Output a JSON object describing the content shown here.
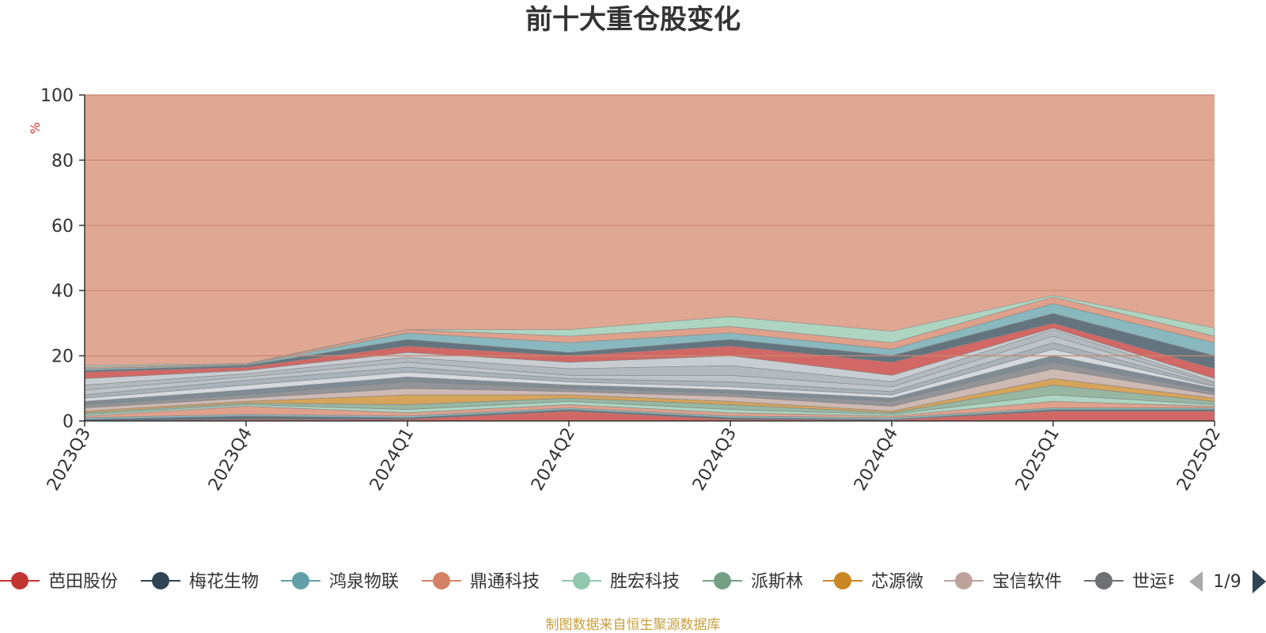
{
  "chart_data": {
    "type": "area",
    "stacked": true,
    "title": "前十大重仓股变化",
    "ylabel": "%",
    "ylim": [
      0,
      100
    ],
    "yticks": [
      0,
      20,
      40,
      60,
      80,
      100
    ],
    "grid": true,
    "categories": [
      "2023Q3",
      "2023Q4",
      "2024Q1",
      "2024Q2",
      "2024Q3",
      "2024Q4",
      "2025Q1",
      "2025Q2"
    ],
    "series": [
      {
        "name": "芭田股份",
        "color": "#c23531",
        "values": [
          0,
          0,
          0,
          3,
          0,
          0,
          0,
          0
        ]
      },
      {
        "name": "梅花生物",
        "color": "#2f4554",
        "values": [
          0,
          0,
          0,
          0,
          0,
          0,
          0,
          2
        ]
      },
      {
        "name": "鸿泉物联",
        "color": "#61a0a8",
        "values": [
          0,
          2,
          0,
          0,
          0,
          0,
          0,
          1
        ]
      },
      {
        "name": "鼎通科技",
        "color": "#d48265",
        "values": [
          0,
          2,
          0,
          0,
          0,
          0,
          3,
          2
        ]
      },
      {
        "name": "胜宏科技",
        "color": "#91c7ae",
        "values": [
          0,
          1,
          0,
          0,
          0,
          0,
          0,
          1
        ]
      },
      {
        "name": "派斯林",
        "color": "#749f83",
        "values": [
          0,
          1,
          0,
          0,
          0,
          0,
          0,
          0
        ]
      },
      {
        "name": "芯源微",
        "color": "#ca8622",
        "values": [
          0,
          0,
          3,
          0,
          0,
          0,
          0,
          0
        ]
      },
      {
        "name": "宝信软件",
        "color": "#bda29a",
        "values": [
          0,
          0,
          0,
          0,
          2,
          0,
          0,
          0
        ]
      },
      {
        "name": "世运电路",
        "color": "#6e7074",
        "values": [
          0,
          0,
          0,
          0,
          0,
          0,
          3,
          0
        ]
      },
      {
        "name": "",
        "color": "#546570",
        "values": [
          0,
          0,
          0,
          0,
          0,
          0,
          0,
          0
        ]
      },
      {
        "name": "",
        "color": "#c4ccd3",
        "values": [
          0,
          0,
          0,
          0,
          0,
          0,
          0,
          0
        ]
      },
      {
        "name": "",
        "color": "#f05b72",
        "values": [
          0,
          0,
          0,
          0,
          0,
          0,
          0,
          0
        ]
      },
      {
        "name": "",
        "color": "#ef5b9c",
        "values": [
          0,
          0,
          0,
          0,
          0,
          0,
          0,
          0
        ]
      },
      {
        "name": "",
        "color": "#f47920",
        "values": [
          0,
          0,
          0,
          0,
          0,
          0,
          0,
          0
        ]
      },
      {
        "name": "",
        "color": "#905a3d",
        "values": [
          0,
          0,
          0,
          0,
          0,
          0,
          0,
          0
        ]
      },
      {
        "name": "",
        "color": "#fab27b",
        "values": [
          0,
          0,
          0,
          0,
          0,
          0,
          0,
          0
        ]
      },
      {
        "name": "",
        "color": "#2a5caa",
        "values": [
          0,
          0,
          0,
          0,
          0,
          0,
          0,
          0
        ]
      },
      {
        "name": "",
        "color": "#444693",
        "values": [
          0,
          0,
          0,
          0,
          0,
          0,
          0,
          0
        ]
      },
      {
        "name": "",
        "color": "#726930",
        "values": [
          0,
          0,
          0,
          0,
          0,
          0,
          0,
          0
        ]
      },
      {
        "name": "",
        "color": "#b2d235",
        "values": [
          0,
          0,
          0,
          0,
          0,
          0,
          0,
          0
        ]
      },
      {
        "name": "",
        "color": "#6d8346",
        "values": [
          0,
          0,
          0,
          0,
          0,
          0,
          0,
          0
        ]
      },
      {
        "name": "",
        "color": "#ac6767",
        "values": [
          0,
          0,
          0,
          0,
          0,
          0,
          0,
          0
        ]
      },
      {
        "name": "",
        "color": "#1d953f",
        "values": [
          0,
          0,
          0,
          0,
          0,
          0,
          0,
          0
        ]
      },
      {
        "name": "",
        "color": "#6950a1",
        "values": [
          0,
          0,
          0,
          0,
          0,
          0,
          0,
          0
        ]
      },
      {
        "name": "",
        "color": "#918597",
        "values": [
          0,
          0,
          0,
          0,
          0,
          0,
          0,
          0
        ]
      }
    ],
    "stack_bands": {
      "colors": [
        "#c23531",
        "#2f4554",
        "#61a0a8",
        "#d48265",
        "#91c7ae",
        "#749f83",
        "#ca8622",
        "#bda29a",
        "#6e7074",
        "#546570",
        "#c4ccd3",
        "#8e9aa3",
        "#a7b0b8",
        "#9aa3aa",
        "#b5bcc2"
      ],
      "tops": [
        [
          0,
          0.5,
          0.5,
          3,
          0.5,
          0.3,
          3,
          3
        ],
        [
          0.5,
          1.5,
          1.0,
          3.5,
          1.0,
          0.5,
          3.5,
          3.5
        ],
        [
          1.0,
          2.0,
          1.5,
          4.0,
          1.5,
          1.0,
          4.0,
          4.0
        ],
        [
          1.5,
          4.5,
          2.5,
          5.0,
          2.5,
          1.5,
          6.0,
          4.5
        ],
        [
          2.0,
          5.0,
          3.5,
          6.0,
          3.5,
          2.0,
          8.0,
          5.0
        ],
        [
          2.5,
          5.5,
          5.0,
          7.0,
          5.0,
          2.5,
          11.0,
          6.0
        ],
        [
          3.0,
          6.0,
          8.0,
          8.0,
          6.0,
          3.0,
          13.0,
          7.0
        ],
        [
          4.0,
          7.0,
          10.0,
          9.0,
          7.5,
          4.5,
          16.0,
          8.0
        ],
        [
          5.0,
          8.0,
          12.0,
          10.0,
          8.5,
          6.0,
          18.0,
          9.0
        ],
        [
          6.0,
          9.5,
          13.5,
          11.0,
          9.5,
          7.0,
          20.0,
          10.0
        ],
        [
          7.0,
          11.0,
          15.0,
          12.0,
          10.5,
          8.0,
          22.0,
          10.5
        ],
        [
          8.0,
          12.5,
          16.5,
          13.0,
          12.0,
          9.0,
          24.0,
          11.0
        ],
        [
          9.5,
          13.5,
          18.0,
          14.0,
          14.0,
          10.5,
          26.0,
          11.5
        ],
        [
          11.0,
          14.5,
          19.5,
          16.0,
          17.0,
          12.0,
          28.0,
          12.0
        ],
        [
          13.0,
          15.5,
          21.0,
          18.0,
          20.0,
          14.0,
          28.5,
          13.0
        ],
        [
          15.0,
          16.5,
          23.0,
          20.0,
          23.0,
          18.0,
          30.0,
          16.0
        ],
        [
          15.5,
          17.0,
          25.0,
          21.0,
          25.0,
          20.0,
          33.0,
          20.0
        ],
        [
          16.0,
          17.2,
          27.0,
          24.0,
          27.0,
          22.0,
          36.0,
          24.0
        ],
        [
          16.5,
          17.4,
          28.0,
          26.0,
          29.0,
          24.0,
          38.0,
          26.0
        ],
        [
          17.0,
          17.6,
          28.0,
          28.0,
          32.0,
          27.5,
          38.5,
          28.5
        ]
      ],
      "remainder_color": "#e0a792",
      "total": 100
    }
  },
  "legend": {
    "items": [
      {
        "label": "芭田股份",
        "color": "#c23531"
      },
      {
        "label": "梅花生物",
        "color": "#2f4554"
      },
      {
        "label": "鸿泉物联",
        "color": "#61a0a8"
      },
      {
        "label": "鼎通科技",
        "color": "#d48265"
      },
      {
        "label": "胜宏科技",
        "color": "#91c7ae"
      },
      {
        "label": "派斯林",
        "color": "#749f83"
      },
      {
        "label": "芯源微",
        "color": "#ca8622"
      },
      {
        "label": "宝信软件",
        "color": "#bda29a"
      },
      {
        "label": "世运电路",
        "color": "#6e7074"
      }
    ],
    "page_indicator": "1/9",
    "prev_icon": "triangle-left-icon",
    "next_icon": "triangle-right-icon"
  },
  "footer": {
    "source": "制图数据来自恒生聚源数据库"
  },
  "colors": {
    "axis": "#333333",
    "grid": "#c9876f",
    "title": "#333333",
    "source": "#c8a03c",
    "unit": "#e03030",
    "page_active": "#2f4554",
    "page_inactive": "#aaaaaa"
  }
}
